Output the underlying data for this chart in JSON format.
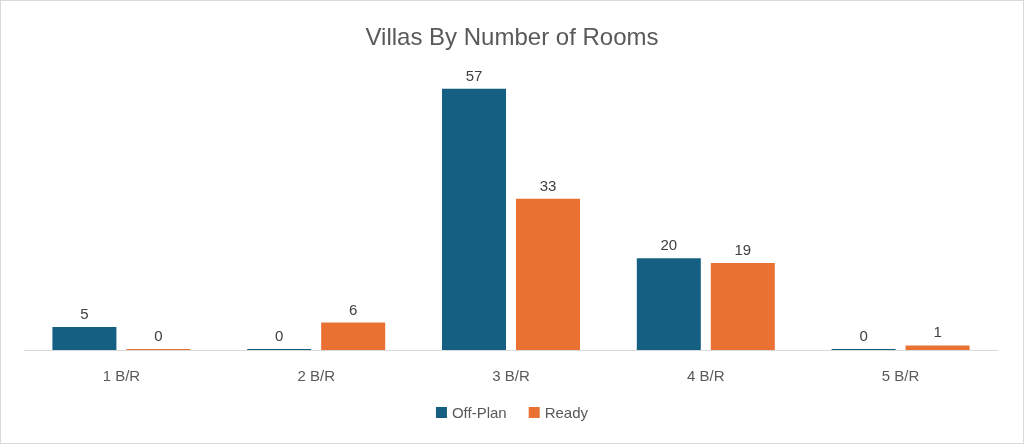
{
  "chart_data": {
    "type": "bar",
    "title": "Villas By Number of Rooms",
    "categories": [
      "1 B/R",
      "2 B/R",
      "3 B/R",
      "4 B/R",
      "5 B/R"
    ],
    "series": [
      {
        "name": "Off-Plan",
        "color": "#156082",
        "values": [
          5,
          0,
          57,
          20,
          0
        ]
      },
      {
        "name": "Ready",
        "color": "#e97132",
        "values": [
          0,
          6,
          33,
          19,
          1
        ]
      }
    ],
    "data_labels": true,
    "legend": "bottom",
    "grid": false
  }
}
